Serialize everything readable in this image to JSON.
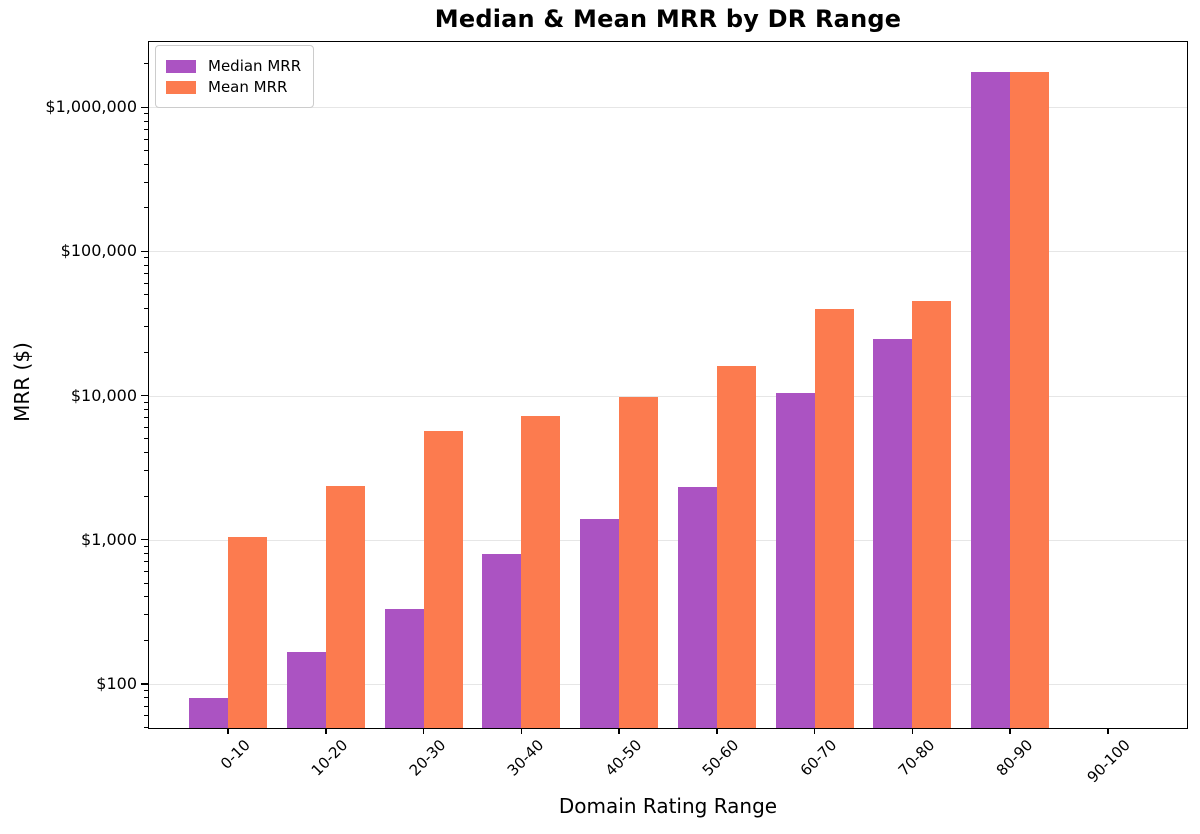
{
  "chart_data": {
    "type": "bar",
    "title": "Median & Mean MRR by DR Range",
    "xlabel": "Domain Rating Range",
    "ylabel": "MRR ($)",
    "yscale": "log",
    "grid": "horizontal-major",
    "legend_position": "upper left",
    "categories": [
      "0-10",
      "10-20",
      "20-30",
      "30-40",
      "40-50",
      "50-60",
      "60-70",
      "70-80",
      "80-90",
      "90-100"
    ],
    "series": [
      {
        "name": "Median MRR",
        "color": "#AB53C2",
        "values": [
          80,
          165,
          330,
          800,
          1400,
          2300,
          10400,
          24500,
          1750000,
          0
        ]
      },
      {
        "name": "Mean MRR",
        "color": "#FC7B4F",
        "values": [
          1050,
          2350,
          5700,
          7200,
          9700,
          16000,
          39800,
          45000,
          1750000,
          0
        ]
      }
    ],
    "ylim": [
      48.5,
      2880000
    ],
    "yticks": [
      {
        "value": 100,
        "label": "$100"
      },
      {
        "value": 1000,
        "label": "$1,000"
      },
      {
        "value": 10000,
        "label": "$10,000"
      },
      {
        "value": 100000,
        "label": "$100,000"
      },
      {
        "value": 1000000,
        "label": "$1,000,000"
      }
    ],
    "colors": {
      "gridline": "#e6e6e6",
      "spine": "#000000",
      "background": "#ffffff"
    }
  }
}
